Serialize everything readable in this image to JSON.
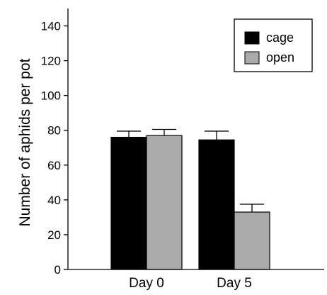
{
  "chart_data": {
    "type": "bar",
    "title": "",
    "xlabel": "",
    "ylabel": "Number of aphids per pot",
    "categories": [
      "Day 0",
      "Day 5"
    ],
    "ylim": [
      0,
      150
    ],
    "yticks": [
      0,
      20,
      40,
      60,
      80,
      100,
      120,
      140
    ],
    "grid": false,
    "legend_position": "top-right",
    "series": [
      {
        "name": "cage",
        "color": "#000000",
        "values": [
          76,
          74.5
        ],
        "errors": [
          3.5,
          5
        ]
      },
      {
        "name": "open",
        "color": "#aaaaaa",
        "values": [
          77,
          33
        ],
        "errors": [
          3.5,
          4.5
        ]
      }
    ]
  }
}
